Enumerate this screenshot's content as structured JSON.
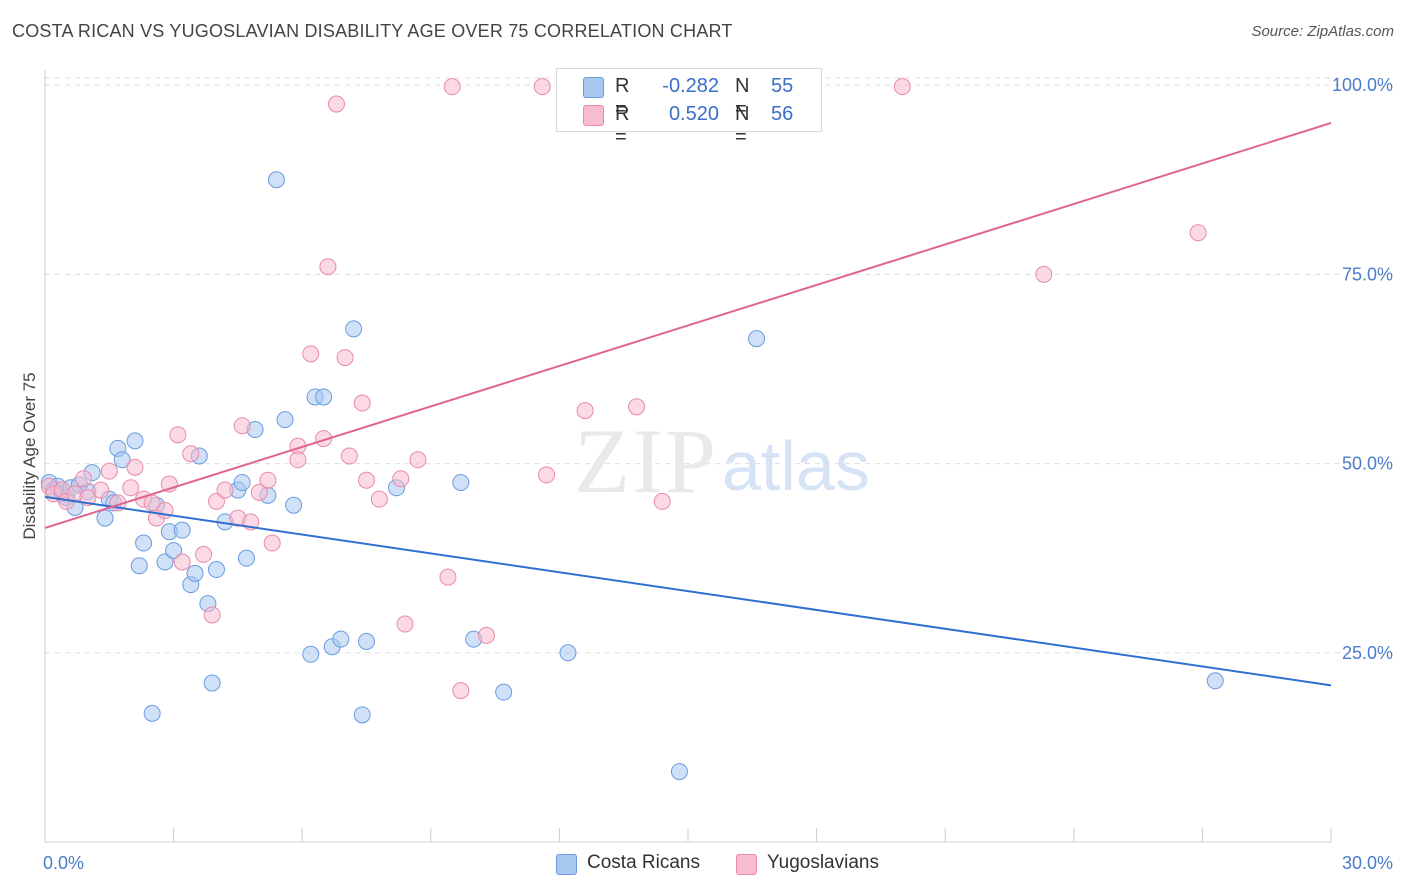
{
  "title": "COSTA RICAN VS YUGOSLAVIAN DISABILITY AGE OVER 75 CORRELATION CHART",
  "source": "Source: ZipAtlas.com",
  "watermark": {
    "zip": "ZIP",
    "atlas": "atlas"
  },
  "legend": {
    "rows": [
      {
        "r_label": "R =",
        "r_value": "-0.282",
        "n_label": "N =",
        "n_value": "55"
      },
      {
        "r_label": "R =",
        "r_value": "0.520",
        "n_label": "N =",
        "n_value": "56"
      }
    ]
  },
  "bottom_legend": {
    "costa": "Costa Ricans",
    "yugo": "Yugoslavians"
  },
  "colors": {
    "costa_fill": "#a9c8f0",
    "costa_stroke": "#6a9be0",
    "costa_line": "#2f6fd0",
    "yugo_fill": "#f7bcd0",
    "yugo_stroke": "#e98aaa",
    "yugo_line": "#e0658f",
    "grid": "#dddddd",
    "tick_text": "#4a7cc9"
  },
  "chart_data": {
    "type": "scatter",
    "title": "COSTA RICAN VS YUGOSLAVIAN DISABILITY AGE OVER 75 CORRELATION CHART",
    "xlabel": "",
    "ylabel": "Disability Age Over 75",
    "xlim": [
      0,
      30
    ],
    "ylim": [
      0,
      102
    ],
    "x_tick_labels": [
      "0.0%",
      "30.0%"
    ],
    "y_ticks": [
      25,
      50,
      75,
      100
    ],
    "y_tick_labels": [
      "25.0%",
      "50.0%",
      "75.0%",
      "100.0%"
    ],
    "grid": "horizontal dashed",
    "legend_position": "top-center",
    "series": [
      {
        "name": "Costa Ricans",
        "r": -0.282,
        "n": 55,
        "trend": {
          "x": [
            0,
            30
          ],
          "y": [
            45.6,
            20.7
          ]
        },
        "points": [
          [
            0.1,
            47.5
          ],
          [
            0.2,
            46.5
          ],
          [
            0.3,
            47.0
          ],
          [
            0.4,
            46.0
          ],
          [
            0.5,
            45.5
          ],
          [
            0.6,
            46.8
          ],
          [
            0.7,
            44.2
          ],
          [
            0.8,
            47.2
          ],
          [
            1.0,
            46.3
          ],
          [
            1.1,
            48.8
          ],
          [
            1.4,
            42.8
          ],
          [
            1.5,
            45.3
          ],
          [
            1.6,
            44.8
          ],
          [
            1.7,
            52.0
          ],
          [
            1.8,
            50.5
          ],
          [
            2.1,
            53.0
          ],
          [
            2.2,
            36.5
          ],
          [
            2.3,
            39.5
          ],
          [
            2.5,
            17.0
          ],
          [
            2.6,
            44.5
          ],
          [
            2.8,
            37.0
          ],
          [
            2.9,
            41.0
          ],
          [
            3.0,
            38.5
          ],
          [
            3.2,
            41.2
          ],
          [
            3.4,
            34.0
          ],
          [
            3.5,
            35.5
          ],
          [
            3.6,
            51.0
          ],
          [
            3.8,
            31.5
          ],
          [
            3.9,
            21.0
          ],
          [
            4.0,
            36.0
          ],
          [
            4.2,
            42.3
          ],
          [
            4.5,
            46.5
          ],
          [
            4.6,
            47.5
          ],
          [
            4.7,
            37.5
          ],
          [
            4.9,
            54.5
          ],
          [
            5.2,
            45.8
          ],
          [
            5.4,
            87.5
          ],
          [
            5.6,
            55.8
          ],
          [
            5.8,
            44.5
          ],
          [
            6.2,
            24.8
          ],
          [
            6.3,
            58.8
          ],
          [
            6.5,
            58.8
          ],
          [
            6.7,
            25.8
          ],
          [
            6.9,
            26.8
          ],
          [
            7.2,
            67.8
          ],
          [
            7.4,
            16.8
          ],
          [
            7.5,
            26.5
          ],
          [
            8.2,
            46.8
          ],
          [
            9.7,
            47.5
          ],
          [
            10.0,
            26.8
          ],
          [
            10.7,
            19.8
          ],
          [
            12.2,
            25.0
          ],
          [
            14.8,
            9.3
          ],
          [
            16.6,
            66.5
          ],
          [
            27.3,
            21.3
          ]
        ]
      },
      {
        "name": "Yugoslavians",
        "r": 0.52,
        "n": 56,
        "trend": {
          "x": [
            0,
            30
          ],
          "y": [
            41.5,
            95.0
          ]
        },
        "points": [
          [
            0.1,
            47.0
          ],
          [
            0.2,
            46.0
          ],
          [
            0.4,
            46.5
          ],
          [
            0.5,
            45.0
          ],
          [
            0.7,
            46.0
          ],
          [
            0.9,
            48.0
          ],
          [
            1.0,
            45.5
          ],
          [
            1.3,
            46.5
          ],
          [
            1.5,
            49.0
          ],
          [
            1.7,
            44.8
          ],
          [
            2.0,
            46.8
          ],
          [
            2.1,
            49.5
          ],
          [
            2.3,
            45.3
          ],
          [
            2.5,
            44.8
          ],
          [
            2.6,
            42.8
          ],
          [
            2.8,
            43.8
          ],
          [
            2.9,
            47.3
          ],
          [
            3.1,
            53.8
          ],
          [
            3.2,
            37.0
          ],
          [
            3.4,
            51.3
          ],
          [
            3.7,
            38.0
          ],
          [
            3.9,
            30.0
          ],
          [
            4.0,
            45.0
          ],
          [
            4.2,
            46.5
          ],
          [
            4.5,
            42.8
          ],
          [
            4.6,
            55.0
          ],
          [
            4.8,
            42.3
          ],
          [
            5.0,
            46.2
          ],
          [
            5.2,
            47.8
          ],
          [
            5.3,
            39.5
          ],
          [
            5.9,
            52.3
          ],
          [
            5.9,
            50.5
          ],
          [
            6.2,
            64.5
          ],
          [
            6.5,
            53.3
          ],
          [
            6.6,
            76.0
          ],
          [
            6.8,
            97.5
          ],
          [
            7.0,
            64.0
          ],
          [
            7.1,
            51.0
          ],
          [
            7.4,
            58.0
          ],
          [
            7.5,
            47.8
          ],
          [
            7.8,
            45.3
          ],
          [
            8.3,
            48.0
          ],
          [
            8.4,
            28.8
          ],
          [
            8.7,
            50.5
          ],
          [
            9.4,
            35.0
          ],
          [
            9.5,
            99.8
          ],
          [
            9.7,
            20.0
          ],
          [
            10.3,
            27.3
          ],
          [
            11.6,
            99.8
          ],
          [
            11.7,
            48.5
          ],
          [
            12.6,
            57.0
          ],
          [
            13.8,
            57.5
          ],
          [
            14.4,
            45.0
          ],
          [
            20.0,
            99.8
          ],
          [
            23.3,
            75.0
          ],
          [
            26.9,
            80.5
          ]
        ]
      }
    ]
  }
}
